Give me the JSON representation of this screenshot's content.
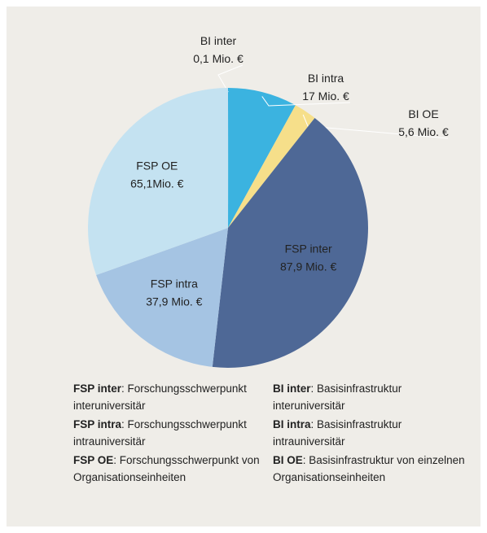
{
  "chart_data": {
    "type": "pie",
    "categories": [
      "BI inter",
      "BI intra",
      "BI OE",
      "FSP inter",
      "FSP intra",
      "FSP OE"
    ],
    "values": [
      0.1,
      17,
      5.6,
      87.9,
      37.9,
      65.1
    ],
    "value_labels": [
      "0,1 Mio. €",
      "17 Mio. €",
      "5,6 Mio. €",
      "87,9 Mio. €",
      "37,9 Mio. €",
      "65,1Mio. €"
    ],
    "colors": [
      "#2eaadc",
      "#3bb3e0",
      "#f6df8a",
      "#4e6896",
      "#a5c4e3",
      "#c4e2f1"
    ]
  },
  "legend": [
    {
      "term": "FSP inter",
      "text": ": Forschungsschwerpunkt interuniversitär"
    },
    {
      "term": "BI inter",
      "text": ": Basisinfrastruktur interuniversitär"
    },
    {
      "term": "FSP intra",
      "text": ": Forschungsschwerpunkt intrauniversitär"
    },
    {
      "term": "BI intra",
      "text": ": Basisinfrastruktur intrauniversitär"
    },
    {
      "term": "FSP OE",
      "text": ": Forschungsschwerpunkt von Organisationseinheiten"
    },
    {
      "term": "BI OE",
      "text": ": Basisinfrastruktur von einzelnen Organisationseinheiten"
    }
  ]
}
